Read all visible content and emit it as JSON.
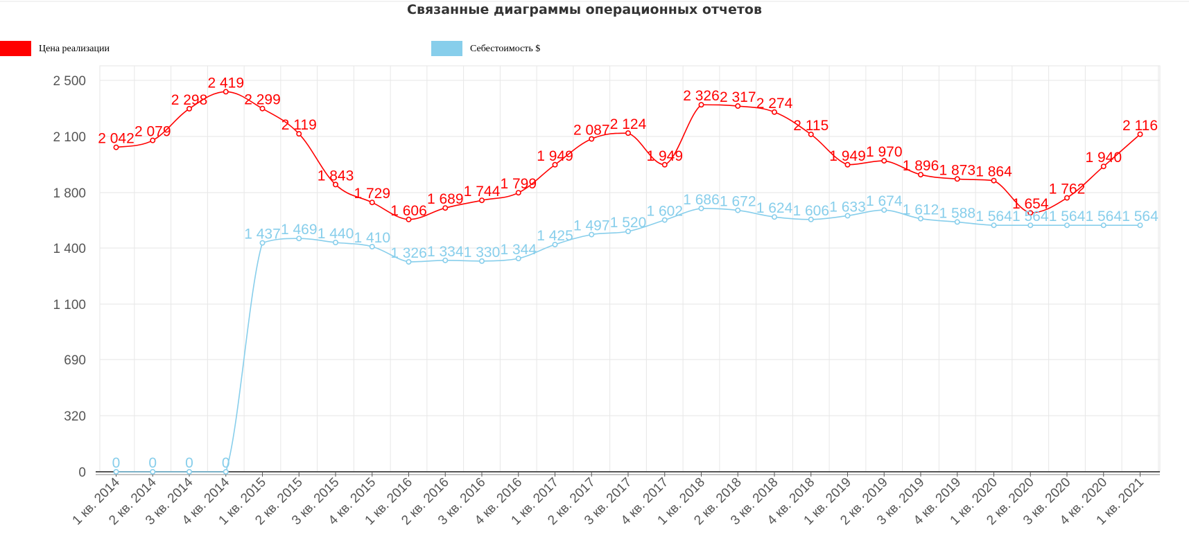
{
  "chart_data": {
    "type": "line",
    "title": "Связанные диаграммы операционных отчетов",
    "xlabel": "",
    "ylabel": "",
    "legend_position": "top-left",
    "grid": true,
    "categories": [
      "1 кв. 2014",
      "2 кв. 2014",
      "3 кв. 2014",
      "4 кв. 2014",
      "1 кв. 2015",
      "2 кв. 2015",
      "3 кв. 2015",
      "4 кв. 2015",
      "1 кв. 2016",
      "2 кв. 2016",
      "3 кв. 2016",
      "4 кв. 2016",
      "1 кв. 2017",
      "2 кв. 2017",
      "3 кв. 2017",
      "4 кв. 2017",
      "1 кв. 2018",
      "2 кв. 2018",
      "3 кв. 2018",
      "4 кв. 2018",
      "1 кв. 2019",
      "2 кв. 2019",
      "3 кв. 2019",
      "4 кв. 2019",
      "1 кв. 2020",
      "2 кв. 2020",
      "3 кв. 2020",
      "4 кв. 2020",
      "1 кв. 2021"
    ],
    "y_ticks": [
      0,
      320,
      690,
      1100,
      1400,
      1800,
      2100,
      2500
    ],
    "y_tick_labels": [
      "0",
      "320",
      "690",
      "1 100",
      "1 400",
      "1 800",
      "2 100",
      "2 500"
    ],
    "series": [
      {
        "name": "Цена реализации",
        "color": "#ff0000",
        "values": [
          2042,
          2079,
          2298,
          2419,
          2299,
          2119,
          1843,
          1729,
          1606,
          1689,
          1744,
          1799,
          1949,
          2087,
          2124,
          1949,
          2326,
          2317,
          2274,
          2115,
          1949,
          1970,
          1896,
          1873,
          1864,
          1654,
          1762,
          1940,
          2116
        ],
        "labels": [
          "2 042",
          "2 079",
          "2 298",
          "2 419",
          "2 299",
          "2 119",
          "1 843",
          "1 729",
          "1 606",
          "1 689",
          "1 744",
          "1 799",
          "1 949",
          "2 087",
          "2 124",
          "1 949",
          "2 326",
          "2 317",
          "2 274",
          "2 115",
          "1 949",
          "1 970",
          "1 896",
          "1 873",
          "1 864",
          "1 654",
          "1 762",
          "1 940",
          "2 116"
        ]
      },
      {
        "name": "Себестоимость $",
        "color": "#87ceeb",
        "values": [
          0,
          0,
          0,
          0,
          1437,
          1469,
          1440,
          1410,
          1326,
          1334,
          1330,
          1344,
          1425,
          1497,
          1520,
          1602,
          1686,
          1672,
          1624,
          1606,
          1633,
          1674,
          1612,
          1588,
          1564,
          1564,
          1564,
          1564,
          1564
        ],
        "labels": [
          "0",
          "0",
          "0",
          "0",
          "1 437",
          "1 469",
          "1 440",
          "1 410",
          "1 326",
          "1 334",
          "1 330",
          "1 344",
          "1 425",
          "1 497",
          "1 520",
          "1 602",
          "1 686",
          "1 672",
          "1 624",
          "1 606",
          "1 633",
          "1 674",
          "1 612",
          "1 588",
          "1 564",
          "1 564",
          "1 564",
          "1 564",
          "1 564"
        ]
      }
    ]
  }
}
